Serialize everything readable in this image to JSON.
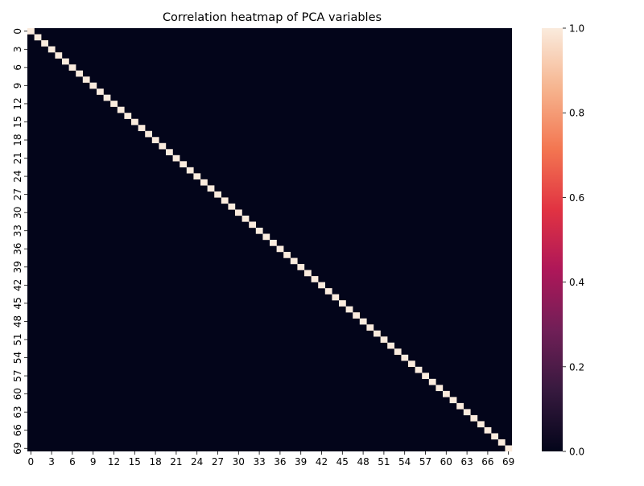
{
  "chart_data": {
    "type": "heatmap",
    "title": "Correlation heatmap of PCA variables",
    "xlabel": "",
    "ylabel": "",
    "size": 70,
    "row_labels": [
      "0",
      "3",
      "6",
      "9",
      "12",
      "15",
      "18",
      "21",
      "24",
      "27",
      "30",
      "33",
      "36",
      "39",
      "42",
      "45",
      "48",
      "51",
      "54",
      "57",
      "60",
      "63",
      "66",
      "69"
    ],
    "col_labels": [
      "0",
      "3",
      "6",
      "9",
      "12",
      "15",
      "18",
      "21",
      "24",
      "27",
      "30",
      "33",
      "36",
      "39",
      "42",
      "45",
      "48",
      "51",
      "54",
      "57",
      "60",
      "63",
      "66",
      "69"
    ],
    "tick_step": 3,
    "matrix_description": "identity",
    "diagonal_value": 1.0,
    "off_diagonal_value": 0.0,
    "colorbar": {
      "min": 0.0,
      "max": 1.0,
      "ticks": [
        "0.0",
        "0.2",
        "0.4",
        "0.6",
        "0.8",
        "1.0"
      ],
      "tick_values": [
        0.0,
        0.2,
        0.4,
        0.6,
        0.8,
        1.0
      ],
      "colormap": "rocket",
      "stops": [
        "#03051a",
        "#36193e",
        "#701f57",
        "#ae1759",
        "#e13342",
        "#f37651",
        "#f6b48e",
        "#faebdd"
      ]
    }
  }
}
